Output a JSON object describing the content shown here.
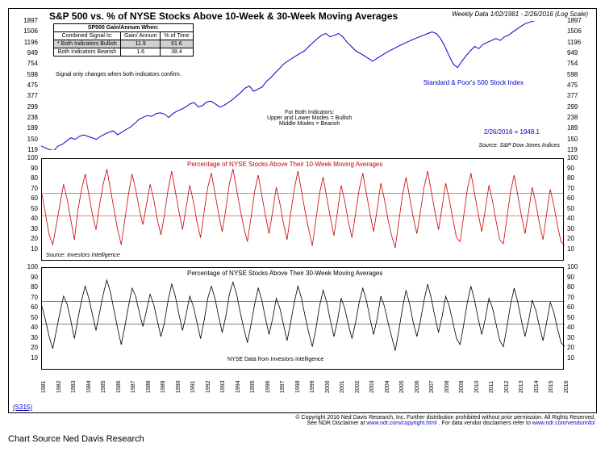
{
  "title": "S&P 500 vs. % of NYSE Stocks Above 10-Week & 30-Week Moving Averages",
  "date_range": "Weekly Data 1/02/1981 - 2/26/2016 (Log Scale)",
  "table": {
    "header": [
      "SP500 Gain/Annum When:"
    ],
    "cols": [
      "Combined Signal Is:",
      "Gain/ Annum",
      "% of Time"
    ],
    "rows": [
      {
        "label": "* Both Indicators Bullish",
        "gain": "11.9",
        "pct": "61.6",
        "hl": true
      },
      {
        "label": "Both Indicators Bearish",
        "gain": "1.6",
        "pct": "38.4",
        "hl": false
      }
    ]
  },
  "signal_note": "Signal only changes when both indicators confirm.",
  "panel1": {
    "label": "Standard & Poor's 500 Stock Index",
    "note1": "For Both Indicators:",
    "note2": "Upper and Lower Modes = Bullish",
    "note3": "Middle Modes = Bearish",
    "latest": "2/26/2016 = 1948.1",
    "source": "Source: S&P Dow Jones Indices",
    "yticks": [
      119,
      150,
      189,
      238,
      299,
      377,
      475,
      598,
      754,
      949,
      1196,
      1506,
      1897
    ],
    "color": "#0000cc",
    "data": [
      130,
      125,
      120,
      118,
      130,
      135,
      145,
      155,
      150,
      160,
      165,
      160,
      155,
      150,
      160,
      168,
      175,
      180,
      165,
      175,
      185,
      195,
      210,
      230,
      240,
      250,
      245,
      260,
      265,
      258,
      240,
      260,
      275,
      285,
      300,
      320,
      330,
      300,
      310,
      335,
      340,
      320,
      300,
      310,
      330,
      350,
      380,
      410,
      450,
      470,
      420,
      440,
      460,
      520,
      560,
      620,
      680,
      750,
      800,
      850,
      900,
      950,
      1000,
      1100,
      1200,
      1300,
      1400,
      1450,
      1350,
      1400,
      1450,
      1350,
      1200,
      1100,
      1000,
      950,
      900,
      850,
      800,
      850,
      900,
      950,
      1000,
      1050,
      1100,
      1150,
      1200,
      1250,
      1300,
      1350,
      1400,
      1450,
      1500,
      1450,
      1300,
      1100,
      900,
      750,
      700,
      800,
      900,
      1000,
      1100,
      1050,
      1150,
      1200,
      1250,
      1300,
      1250,
      1350,
      1400,
      1500,
      1600,
      1700,
      1800,
      1850,
      1900,
      1950,
      2000,
      2050,
      2080,
      2050,
      2000,
      1948
    ]
  },
  "panel2": {
    "title": "Percentage of NYSE Stocks Above Their 10-Week Moving Averages",
    "color": "#cc0000",
    "yticks": [
      10,
      20,
      30,
      40,
      50,
      60,
      70,
      80,
      90,
      100
    ],
    "bands": [
      43.5,
      66
    ],
    "source": "Source: Investors Intelligence",
    "data": [
      65,
      45,
      25,
      15,
      35,
      55,
      75,
      60,
      40,
      20,
      50,
      70,
      85,
      65,
      45,
      30,
      55,
      75,
      90,
      70,
      50,
      30,
      15,
      40,
      65,
      85,
      70,
      50,
      35,
      55,
      75,
      60,
      40,
      25,
      45,
      70,
      88,
      68,
      48,
      30,
      52,
      74,
      58,
      38,
      22,
      48,
      72,
      86,
      66,
      46,
      28,
      50,
      76,
      90,
      70,
      50,
      32,
      18,
      42,
      68,
      84,
      64,
      44,
      26,
      48,
      72,
      56,
      36,
      20,
      46,
      70,
      88,
      68,
      48,
      30,
      14,
      40,
      66,
      82,
      62,
      42,
      24,
      48,
      74,
      58,
      38,
      22,
      46,
      70,
      86,
      66,
      46,
      28,
      50,
      76,
      60,
      40,
      24,
      12,
      38,
      64,
      82,
      62,
      42,
      26,
      48,
      72,
      88,
      68,
      48,
      30,
      52,
      76,
      60,
      40,
      22,
      18,
      44,
      70,
      86,
      66,
      46,
      28,
      50,
      74,
      58,
      38,
      20,
      16,
      42,
      68,
      84,
      64,
      44,
      26,
      48,
      72,
      56,
      36,
      20,
      46,
      70,
      54,
      34,
      18,
      14
    ]
  },
  "panel3": {
    "title": "Percentage of NYSE Stocks Above Their 30-Week Moving Averages",
    "color": "#000000",
    "yticks": [
      10,
      20,
      30,
      40,
      50,
      60,
      70,
      80,
      90,
      100
    ],
    "bands": [
      44.5,
      67
    ],
    "source_label": "NYSE Data from Investors Intelligence",
    "data": [
      62,
      48,
      32,
      20,
      38,
      56,
      72,
      64,
      48,
      30,
      50,
      68,
      82,
      70,
      54,
      38,
      56,
      74,
      88,
      76,
      58,
      40,
      24,
      42,
      62,
      80,
      72,
      56,
      42,
      58,
      74,
      64,
      48,
      32,
      46,
      68,
      84,
      72,
      54,
      38,
      54,
      72,
      62,
      46,
      30,
      48,
      70,
      82,
      70,
      52,
      36,
      52,
      74,
      86,
      74,
      56,
      40,
      26,
      44,
      64,
      80,
      68,
      50,
      34,
      50,
      70,
      60,
      44,
      28,
      46,
      66,
      82,
      70,
      52,
      36,
      22,
      40,
      62,
      78,
      66,
      48,
      32,
      48,
      70,
      60,
      44,
      30,
      46,
      66,
      80,
      68,
      50,
      34,
      50,
      72,
      62,
      46,
      32,
      18,
      38,
      60,
      78,
      64,
      46,
      32,
      48,
      68,
      84,
      70,
      52,
      36,
      52,
      72,
      62,
      46,
      30,
      24,
      44,
      66,
      82,
      68,
      50,
      34,
      50,
      70,
      60,
      44,
      28,
      22,
      42,
      64,
      80,
      66,
      48,
      32,
      48,
      68,
      58,
      42,
      28,
      46,
      66,
      56,
      40,
      26,
      22
    ]
  },
  "xaxis": {
    "years": [
      1981,
      1982,
      1983,
      1984,
      1985,
      1986,
      1987,
      1988,
      1989,
      1990,
      1991,
      1992,
      1993,
      1994,
      1995,
      1996,
      1997,
      1998,
      1999,
      2000,
      2001,
      2002,
      2003,
      2004,
      2005,
      2006,
      2007,
      2008,
      2009,
      2010,
      2011,
      2012,
      2013,
      2014,
      2015,
      2016
    ]
  },
  "code": "(S315)",
  "copyright": "© Copyright 2016 Ned Davis Research, Inc. Further distribution prohibited without prior permission. All Rights Reserved.",
  "disclaimer": "See NDR Disclaimer at",
  "disclaimer_link": "www.ndr.com/copyright.html",
  "disclaimer2": ". For data vendor disclaimers refer to",
  "disclaimer2_link": "www.ndr.com/vendorinfo/",
  "chart_source": "Chart Source Ned Davis Research"
}
